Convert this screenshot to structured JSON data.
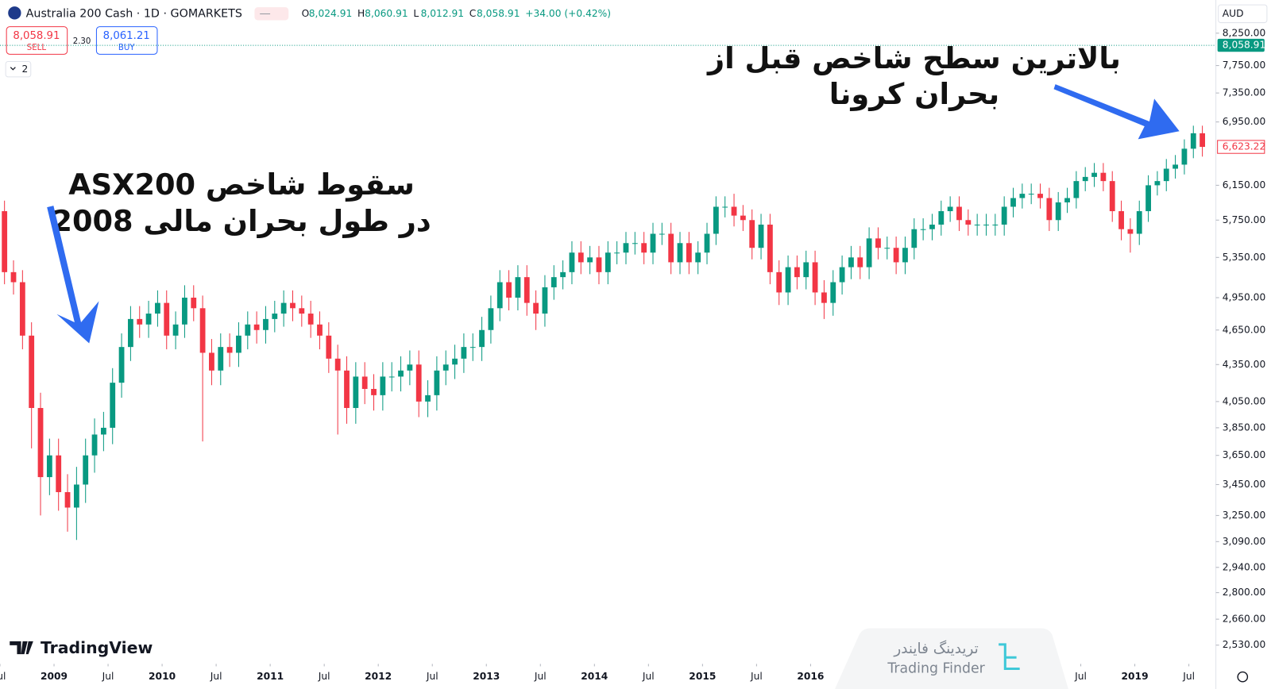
{
  "chart_data": {
    "type": "candlestick",
    "symbol": "Australia 200 Cash · 1D · GOMARKETS",
    "quote_keys": [
      "O",
      "H",
      "L",
      "C"
    ],
    "quote_values": [
      "8,024.91",
      "8,060.91",
      "8,012.91",
      "8,058.91"
    ],
    "quote_change": "+34.00 (+0.42%)",
    "sell_price": "8,058.91",
    "sell_label": "SELL",
    "spread": "2.30",
    "buy_price": "8,061.21",
    "buy_label": "BUY",
    "indicators_count": "2",
    "currency": "AUD",
    "last_price": 8058.91,
    "last_price_label": "8,058.91",
    "last_close_label": "6,623.22",
    "annotations": [
      "سقوط شاخص ASX200",
      "در طول بحران مالی 2008",
      "بالاترین سطح شاخص قبل از",
      "بحران کرونا"
    ],
    "logo": "TradingView",
    "watermark": [
      "تریدینگ فایندر",
      "Trading Finder"
    ],
    "up_color": "#089981",
    "down_color": "#f23645",
    "log_scale": true,
    "grid": false,
    "ylim": [
      2440,
      8796
    ],
    "yticks": [
      {
        "value": 8250,
        "label": "8,250.00"
      },
      {
        "value": 7750,
        "label": "7,750.00"
      },
      {
        "value": 7350,
        "label": "7,350.00"
      },
      {
        "value": 6950,
        "label": "6,950.00"
      },
      {
        "value": 6150,
        "label": "6,150.00"
      },
      {
        "value": 5750,
        "label": "5,750.00"
      },
      {
        "value": 5350,
        "label": "5,350.00"
      },
      {
        "value": 4950,
        "label": "4,950.00"
      },
      {
        "value": 4650,
        "label": "4,650.00"
      },
      {
        "value": 4350,
        "label": "4,350.00"
      },
      {
        "value": 4050,
        "label": "4,050.00"
      },
      {
        "value": 3850,
        "label": "3,850.00"
      },
      {
        "value": 3650,
        "label": "3,650.00"
      },
      {
        "value": 3450,
        "label": "3,450.00"
      },
      {
        "value": 3250,
        "label": "3,250.00"
      },
      {
        "value": 3090,
        "label": "3,090.00"
      },
      {
        "value": 2940,
        "label": "2,940.00"
      },
      {
        "value": 2800,
        "label": "2,800.00"
      },
      {
        "value": 2660,
        "label": "2,660.00"
      },
      {
        "value": 2530,
        "label": "2,530.00"
      }
    ],
    "xlim": [
      "2008-07",
      "2019-10"
    ],
    "xticks": [
      {
        "value": "2008-07",
        "label": "Jul"
      },
      2009,
      {
        "value": "2009-07",
        "label": "Jul"
      },
      2010,
      {
        "value": "2010-07",
        "label": "Jul"
      },
      2011,
      {
        "value": "2011-07",
        "label": "Jul"
      },
      2012,
      {
        "value": "2012-07",
        "label": "Jul"
      },
      2013,
      {
        "value": "2013-07",
        "label": "Jul"
      },
      2014,
      {
        "value": "2014-07",
        "label": "Jul"
      },
      2015,
      {
        "value": "2015-07",
        "label": "Jul"
      },
      2016,
      {
        "value": "2018-07",
        "label": "Jul"
      },
      2019,
      {
        "value": "2019-07",
        "label": "Jul"
      }
    ],
    "x": [
      "2008-06",
      "2008-07",
      "2008-08",
      "2008-09",
      "2008-10",
      "2008-11",
      "2008-12",
      "2009-01",
      "2009-02",
      "2009-03",
      "2009-04",
      "2009-05",
      "2009-06",
      "2009-07",
      "2009-08",
      "2009-09",
      "2009-10",
      "2009-11",
      "2009-12",
      "2010-01",
      "2010-02",
      "2010-03",
      "2010-04",
      "2010-05",
      "2010-06",
      "2010-07",
      "2010-08",
      "2010-09",
      "2010-10",
      "2010-11",
      "2010-12",
      "2011-01",
      "2011-02",
      "2011-03",
      "2011-04",
      "2011-05",
      "2011-06",
      "2011-07",
      "2011-08",
      "2011-09",
      "2011-10",
      "2011-11",
      "2011-12",
      "2012-01",
      "2012-02",
      "2012-03",
      "2012-04",
      "2012-05",
      "2012-06",
      "2012-07",
      "2012-08",
      "2012-09",
      "2012-10",
      "2012-11",
      "2012-12",
      "2013-01",
      "2013-02",
      "2013-03",
      "2013-04",
      "2013-05",
      "2013-06",
      "2013-07",
      "2013-08",
      "2013-09",
      "2013-10",
      "2013-11",
      "2013-12",
      "2014-01",
      "2014-02",
      "2014-03",
      "2014-04",
      "2014-05",
      "2014-06",
      "2014-07",
      "2014-08",
      "2014-09",
      "2014-10",
      "2014-11",
      "2014-12",
      "2015-01",
      "2015-02",
      "2015-03",
      "2015-04",
      "2015-05",
      "2015-06",
      "2015-07",
      "2015-08",
      "2015-09",
      "2015-10",
      "2015-11",
      "2015-12",
      "2016-01",
      "2016-02",
      "2016-03",
      "2016-04",
      "2016-05",
      "2016-06",
      "2016-07",
      "2016-08",
      "2016-09",
      "2016-10",
      "2016-11",
      "2016-12",
      "2017-01",
      "2017-02",
      "2017-03",
      "2017-04",
      "2017-05",
      "2017-06",
      "2017-07",
      "2017-08",
      "2017-09",
      "2017-10",
      "2017-11",
      "2017-12",
      "2018-01",
      "2018-02",
      "2018-03",
      "2018-04",
      "2018-05",
      "2018-06",
      "2018-07",
      "2018-08",
      "2018-09",
      "2018-10",
      "2018-11",
      "2018-12",
      "2019-01",
      "2019-02",
      "2019-03",
      "2019-04",
      "2019-05",
      "2019-06",
      "2019-07",
      "2019-08"
    ],
    "open": [
      5950,
      5850,
      5200,
      5100,
      4600,
      4000,
      3500,
      3650,
      3400,
      3300,
      3450,
      3650,
      3800,
      3850,
      4200,
      4500,
      4750,
      4700,
      4800,
      4900,
      4600,
      4700,
      4950,
      4850,
      4450,
      4300,
      4500,
      4450,
      4600,
      4700,
      4650,
      4750,
      4800,
      4900,
      4850,
      4800,
      4700,
      4600,
      4400,
      4300,
      4000,
      4250,
      4150,
      4100,
      4250,
      4250,
      4300,
      4350,
      4050,
      4100,
      4300,
      4350,
      4400,
      4500,
      4500,
      4650,
      4850,
      5100,
      4950,
      5150,
      4900,
      4800,
      5050,
      5150,
      5200,
      5400,
      5300,
      5350,
      5200,
      5400,
      5400,
      5500,
      5500,
      5400,
      5600,
      5600,
      5300,
      5500,
      5300,
      5400,
      5600,
      5900,
      5900,
      5800,
      5750,
      5450,
      5700,
      5200,
      5000,
      5250,
      5150,
      5300,
      5000,
      4900,
      5100,
      5250,
      5350,
      5250,
      5550,
      5450,
      5450,
      5300,
      5450,
      5650,
      5650,
      5700,
      5850,
      5900,
      5750,
      5700,
      5700,
      5700,
      5700,
      5900,
      6000,
      6050,
      6050,
      6000,
      5750,
      5950,
      6000,
      6200,
      6250,
      6300,
      6200,
      5850,
      5650,
      5600,
      5850,
      6150,
      6200,
      6350,
      6400,
      6600,
      6800
    ],
    "high": [
      6070,
      5970,
      5320,
      5220,
      4720,
      4120,
      3770,
      3770,
      3520,
      3570,
      3770,
      3920,
      3970,
      4320,
      4620,
      4870,
      4870,
      4920,
      5020,
      5020,
      4820,
      5070,
      5070,
      4970,
      4570,
      4620,
      4620,
      4720,
      4820,
      4820,
      4870,
      4920,
      5020,
      5020,
      4970,
      4920,
      4820,
      4720,
      4520,
      4420,
      4370,
      4370,
      4270,
      4370,
      4370,
      4420,
      4470,
      4470,
      4220,
      4420,
      4470,
      4520,
      4620,
      4620,
      4770,
      4970,
      5220,
      5220,
      5270,
      5270,
      5020,
      5170,
      5270,
      5320,
      5520,
      5520,
      5470,
      5470,
      5520,
      5520,
      5620,
      5620,
      5620,
      5720,
      5720,
      5720,
      5620,
      5620,
      5520,
      5720,
      6020,
      6020,
      6050,
      5920,
      5870,
      5820,
      5820,
      5320,
      5370,
      5370,
      5420,
      5420,
      5120,
      5220,
      5370,
      5470,
      5470,
      5670,
      5670,
      5570,
      5570,
      5570,
      5770,
      5770,
      5820,
      5970,
      6020,
      6020,
      5870,
      5820,
      5820,
      5820,
      6020,
      6120,
      6170,
      6170,
      6170,
      6120,
      6070,
      6120,
      6320,
      6370,
      6420,
      6420,
      6320,
      5970,
      5770,
      5970,
      6270,
      6320,
      6470,
      6520,
      6720,
      6900,
      6900
    ],
    "low": [
      5730,
      5080,
      4980,
      4480,
      3700,
      3250,
      3380,
      3280,
      3150,
      3100,
      3330,
      3530,
      3680,
      3730,
      4080,
      4380,
      4580,
      4580,
      4680,
      4480,
      4480,
      4580,
      4730,
      3750,
      4180,
      4180,
      4330,
      4330,
      4480,
      4530,
      4530,
      4630,
      4680,
      4730,
      4680,
      4580,
      4480,
      4280,
      3800,
      3880,
      3880,
      4030,
      3980,
      3980,
      4130,
      4130,
      4180,
      3930,
      3930,
      3980,
      4180,
      4230,
      4280,
      4380,
      4380,
      4530,
      4730,
      4830,
      4830,
      4780,
      4650,
      4680,
      4930,
      5030,
      5080,
      5180,
      5180,
      5080,
      5080,
      5280,
      5280,
      5380,
      5280,
      5280,
      5480,
      5180,
      5180,
      5180,
      5180,
      5280,
      5480,
      5780,
      5680,
      5630,
      5330,
      5330,
      5080,
      4880,
      4880,
      5030,
      5030,
      4880,
      4750,
      4780,
      4980,
      5130,
      5130,
      5130,
      5330,
      5330,
      5180,
      5180,
      5330,
      5530,
      5530,
      5580,
      5730,
      5630,
      5580,
      5580,
      5580,
      5580,
      5580,
      5780,
      5880,
      5930,
      5880,
      5630,
      5630,
      5830,
      5880,
      6080,
      6130,
      6080,
      5730,
      5530,
      5400,
      5480,
      5730,
      6030,
      6080,
      6230,
      6280,
      6480,
      6500
    ],
    "close": [
      5850,
      5200,
      5100,
      4600,
      4000,
      3500,
      3650,
      3400,
      3300,
      3450,
      3650,
      3800,
      3850,
      4200,
      4500,
      4750,
      4700,
      4800,
      4900,
      4600,
      4700,
      4950,
      4850,
      4450,
      4300,
      4500,
      4450,
      4600,
      4700,
      4650,
      4750,
      4800,
      4900,
      4850,
      4800,
      4700,
      4600,
      4400,
      4300,
      4000,
      4250,
      4150,
      4100,
      4250,
      4250,
      4300,
      4350,
      4050,
      4100,
      4300,
      4350,
      4400,
      4500,
      4500,
      4650,
      4850,
      5100,
      4950,
      5150,
      4900,
      4800,
      5050,
      5150,
      5200,
      5400,
      5300,
      5350,
      5200,
      5400,
      5400,
      5500,
      5500,
      5400,
      5600,
      5600,
      5300,
      5500,
      5300,
      5400,
      5600,
      5900,
      5900,
      5800,
      5750,
      5450,
      5700,
      5200,
      5000,
      5250,
      5150,
      5300,
      5000,
      4900,
      5100,
      5250,
      5350,
      5250,
      5550,
      5450,
      5450,
      5300,
      5450,
      5650,
      5650,
      5700,
      5850,
      5900,
      5750,
      5700,
      5700,
      5700,
      5700,
      5900,
      6000,
      6050,
      6050,
      6000,
      5750,
      5950,
      6000,
      6200,
      6250,
      6300,
      6200,
      5850,
      5650,
      5600,
      5850,
      6150,
      6200,
      6350,
      6400,
      6600,
      6800,
      6623.22
    ]
  }
}
